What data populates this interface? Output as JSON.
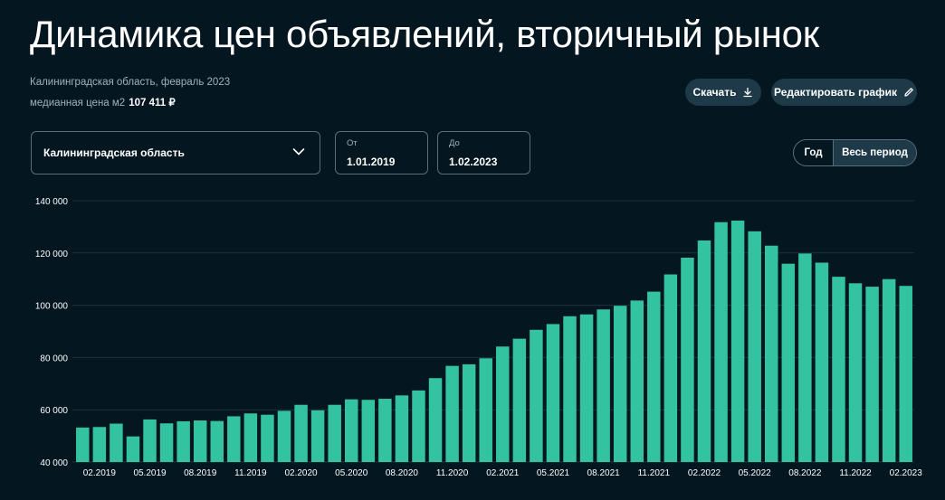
{
  "page": {
    "title": "Динамика цен объявлений, вторичный рынок",
    "subtitle": "Калининградская область, февраль 2023",
    "median_label": "медианная цена м2",
    "median_value": "107 411 ₽"
  },
  "toolbar": {
    "download_label": "Скачать",
    "download_icon": "download-icon",
    "edit_label": "Редактировать график",
    "edit_icon": "pencil-icon"
  },
  "filters": {
    "region": "Калининградская область",
    "region_icon": "chevron-down-icon",
    "from_label": "От",
    "from_value": "1.01.2019",
    "to_label": "До",
    "to_value": "1.02.2023",
    "period_options": [
      "Год",
      "Весь период"
    ],
    "period_selected": "Весь период"
  },
  "colors": {
    "background": "#04161f",
    "bar": "#34c3a0",
    "button": "#1e3a49",
    "muted_text": "#9fb3bf"
  },
  "chart_data": {
    "type": "bar",
    "title": "",
    "xlabel": "",
    "ylabel": "",
    "ylim": [
      40000,
      140000
    ],
    "yticks": [
      40000,
      60000,
      80000,
      100000,
      120000,
      140000
    ],
    "ytick_labels": [
      "40 000",
      "60 000",
      "80 000",
      "100 000",
      "120 000",
      "140 000"
    ],
    "grid": true,
    "xtick_labels": [
      "02.2019",
      "05.2019",
      "08.2019",
      "11.2019",
      "02.2020",
      "05.2020",
      "08.2020",
      "11.2020",
      "02.2021",
      "05.2021",
      "08.2021",
      "11.2021",
      "02.2022",
      "05.2022",
      "08.2022",
      "11.2022",
      "02.2023"
    ],
    "categories": [
      "01.2019",
      "02.2019",
      "03.2019",
      "04.2019",
      "05.2019",
      "06.2019",
      "07.2019",
      "08.2019",
      "09.2019",
      "10.2019",
      "11.2019",
      "12.2019",
      "01.2020",
      "02.2020",
      "03.2020",
      "04.2020",
      "05.2020",
      "06.2020",
      "07.2020",
      "08.2020",
      "09.2020",
      "10.2020",
      "11.2020",
      "12.2020",
      "01.2021",
      "02.2021",
      "03.2021",
      "04.2021",
      "05.2021",
      "06.2021",
      "07.2021",
      "08.2021",
      "09.2021",
      "10.2021",
      "11.2021",
      "12.2021",
      "01.2022",
      "02.2022",
      "03.2022",
      "04.2022",
      "05.2022",
      "06.2022",
      "07.2022",
      "08.2022",
      "09.2022",
      "10.2022",
      "11.2022",
      "12.2022",
      "01.2023",
      "02.2023"
    ],
    "values": [
      53200,
      53400,
      54700,
      49800,
      56300,
      54800,
      55600,
      55900,
      55700,
      57500,
      58600,
      58100,
      59600,
      61900,
      59800,
      61900,
      64000,
      63800,
      64200,
      65500,
      67400,
      72100,
      76800,
      77400,
      79700,
      84200,
      87200,
      90600,
      92800,
      95800,
      96500,
      98400,
      99800,
      101800,
      105200,
      111800,
      118200,
      124800,
      131800,
      132400,
      128300,
      122800,
      115900,
      119800,
      116300,
      110900,
      108400,
      107100,
      110000,
      107400
    ]
  }
}
